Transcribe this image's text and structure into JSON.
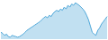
{
  "chart_data": {
    "type": "area",
    "values": [
      35,
      33,
      30,
      32,
      28,
      27,
      30,
      29,
      28,
      27,
      28,
      30,
      32,
      35,
      38,
      40,
      42,
      44,
      46,
      48,
      50,
      52,
      55,
      58,
      60,
      58,
      62,
      60,
      65,
      68,
      70,
      68,
      72,
      70,
      75,
      72,
      78,
      75,
      80,
      78,
      82,
      80,
      78,
      75,
      72,
      68,
      62,
      55,
      45,
      35,
      32,
      30,
      38,
      42,
      48,
      52,
      56,
      60
    ],
    "color": "#4da6d8",
    "ylim": [
      24,
      85
    ],
    "grid": false,
    "tick_labels": false
  }
}
